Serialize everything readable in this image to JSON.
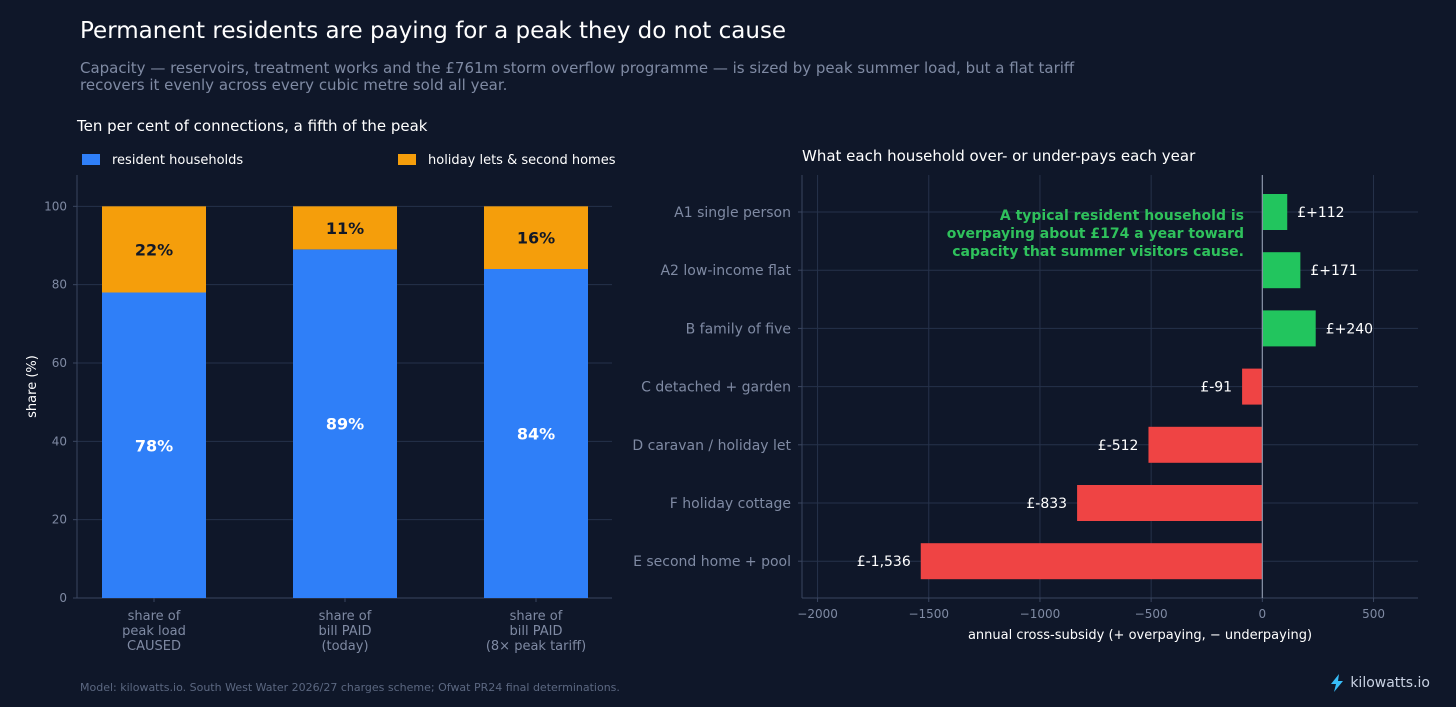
{
  "page": {
    "title": "Permanent residents are paying for a peak they do not cause",
    "subtitle": "Capacity — reservoirs, treatment works and the £761m storm overflow programme — is sized by peak summer load, but a flat tariff recovers it evenly across every cubic metre sold all year.",
    "footer": "Model: kilowatts.io. South West Water 2026/27 charges scheme; Ofwat PR24 final determinations.",
    "brand": "kilowatts.io",
    "brand_icon": "lightning-bolt-icon"
  },
  "colors": {
    "background": "#0f1729",
    "resident": "#2f7ff8",
    "holiday": "#f59e0b",
    "positive": "#22c55e",
    "negative": "#ef4444",
    "annotation": "#2fc15c"
  },
  "chart_data": [
    {
      "type": "bar",
      "stacked": true,
      "title": "Ten per cent of connections, a fifth of the peak",
      "ylabel": "share (%)",
      "xlabel": "",
      "ylim": [
        0,
        108
      ],
      "yticks": [
        0,
        20,
        40,
        60,
        80,
        100
      ],
      "grid": true,
      "legend": "top",
      "categories": [
        [
          "share of",
          "peak load",
          "CAUSED"
        ],
        [
          "share of",
          "bill PAID",
          "(today)"
        ],
        [
          "share of",
          "bill PAID",
          "(8× peak tariff)"
        ]
      ],
      "series": [
        {
          "name": "resident households",
          "values": [
            78,
            89,
            84
          ],
          "labels": [
            "78%",
            "89%",
            "84%"
          ]
        },
        {
          "name": "holiday lets & second homes",
          "values": [
            22,
            11,
            16
          ],
          "labels": [
            "22%",
            "11%",
            "16%"
          ]
        }
      ]
    },
    {
      "type": "bar",
      "orientation": "horizontal",
      "title": "What each household over- or under-pays each year",
      "xlabel": "annual cross-subsidy (+ overpaying, − underpaying)",
      "ylabel": "",
      "xlim": [
        -2070,
        700
      ],
      "xticks": [
        -2000,
        -1500,
        -1000,
        -500,
        0,
        500
      ],
      "xtick_labels": [
        "−2000",
        "−1500",
        "−1000",
        "−500",
        "0",
        "500"
      ],
      "grid": true,
      "categories": [
        "A1  single person",
        "A2  low-income flat",
        "B  family of five",
        "C  detached + garden",
        "D  caravan / holiday let",
        "F  holiday cottage",
        "E  second home + pool"
      ],
      "values": [
        112,
        171,
        240,
        -91,
        -512,
        -833,
        -1536
      ],
      "labels": [
        "£+112",
        "£+171",
        "£+240",
        "£-91",
        "£-512",
        "£-833",
        "£-1,536"
      ],
      "annotation": [
        "A typical resident household is",
        "overpaying about £174 a year toward",
        "capacity that summer visitors cause."
      ]
    }
  ]
}
